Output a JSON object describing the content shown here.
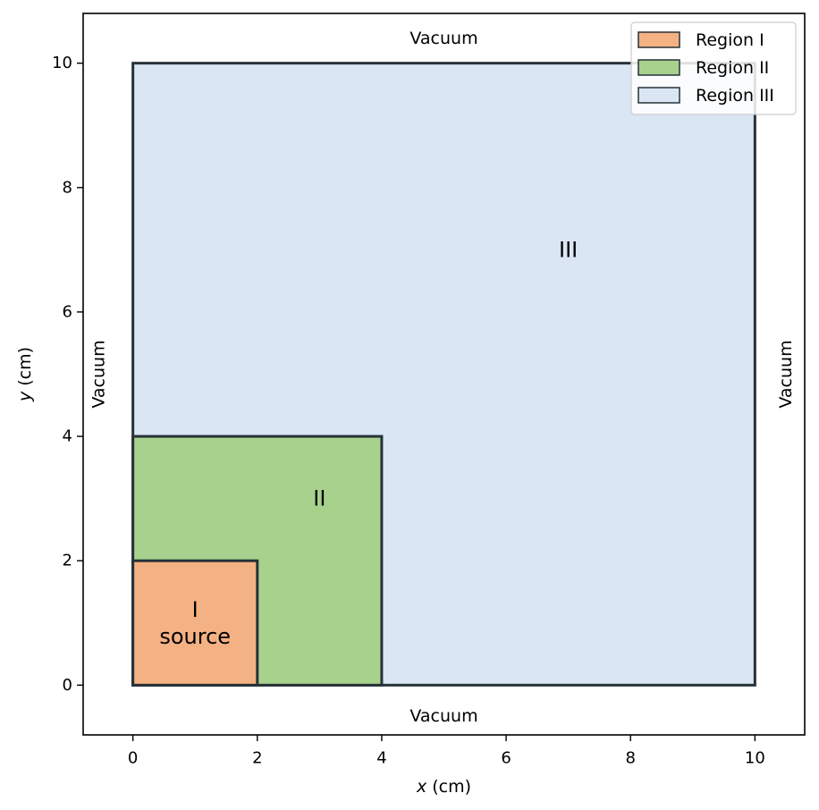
{
  "chart_data": {
    "type": "diagram",
    "xlabel": {
      "var": "x",
      "unit": " (cm)"
    },
    "ylabel": {
      "var": "y",
      "unit": " (cm)"
    },
    "xlim": [
      -0.8,
      10.8
    ],
    "ylim": [
      -0.8,
      10.8
    ],
    "xticks": [
      0,
      2,
      4,
      6,
      8,
      10
    ],
    "yticks": [
      0,
      2,
      4,
      6,
      8,
      10
    ],
    "grid": false,
    "legend_position": "top-right",
    "regions": [
      {
        "name": "Region III",
        "x": [
          0,
          10
        ],
        "y": [
          0,
          10
        ],
        "color": "#dae6f4"
      },
      {
        "name": "Region II",
        "x": [
          0,
          4
        ],
        "y": [
          0,
          4
        ],
        "color": "#a8d18d"
      },
      {
        "name": "Region I",
        "x": [
          0,
          2
        ],
        "y": [
          0,
          2
        ],
        "color": "#f4b183"
      }
    ],
    "edge_color": "#263238",
    "legend": [
      {
        "label": "Region I",
        "color": "#f4b183"
      },
      {
        "label": "Region II",
        "color": "#a8d18d"
      },
      {
        "label": "Region III",
        "color": "#dae6f4"
      }
    ],
    "annotations": [
      {
        "lines": [
          "III"
        ],
        "x": 7,
        "y": 7
      },
      {
        "lines": [
          "II"
        ],
        "x": 3,
        "y": 3
      },
      {
        "lines": [
          "I",
          "source"
        ],
        "x": 1,
        "y": 1
      }
    ],
    "boundary_labels": [
      {
        "text": "Vacuum",
        "side": "top"
      },
      {
        "text": "Vacuum",
        "side": "bottom"
      },
      {
        "text": "Vacuum",
        "side": "left"
      },
      {
        "text": "Vacuum",
        "side": "right"
      }
    ]
  }
}
